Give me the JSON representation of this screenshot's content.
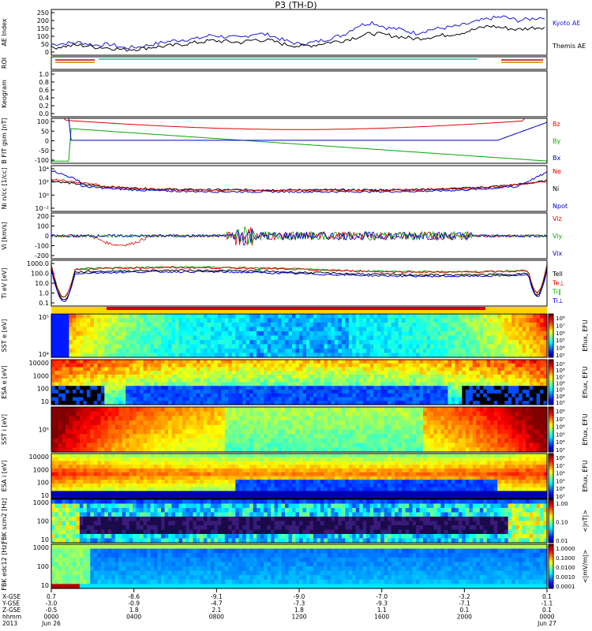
{
  "title": "P3 (TH-D)",
  "chart_data": {
    "type": "line",
    "panels": [
      {
        "name": "ae",
        "ylabel": "AE Index",
        "yticks": [
          "250",
          "200",
          "150",
          "100",
          "50",
          "0"
        ],
        "legend": [
          "Kyoto AE",
          "Themis AE"
        ],
        "series": [
          {
            "name": "Kyoto AE",
            "values": [
              60,
              65,
              70,
              55,
              60,
              40,
              45,
              60,
              75,
              85,
              90,
              110,
              100,
              95,
              120,
              110,
              80,
              60,
              70,
              90,
              110,
              160,
              180,
              150,
              140,
              120,
              140,
              150,
              160,
              180,
              200,
              210,
              190,
              200,
              210
            ]
          },
          {
            "name": "Themis AE",
            "values": [
              40,
              50,
              55,
              45,
              40,
              30,
              35,
              45,
              50,
              60,
              70,
              80,
              75,
              70,
              85,
              80,
              60,
              50,
              55,
              70,
              80,
              100,
              120,
              110,
              100,
              90,
              100,
              110,
              120,
              140,
              160,
              150,
              140,
              150,
              155
            ]
          }
        ]
      },
      {
        "name": "roi",
        "ylabel": "ROI"
      },
      {
        "name": "keogram",
        "ylabel": "Keogram",
        "yticks": [
          "1.0",
          "0.8",
          "0.6",
          "0.4",
          "0.2",
          "0.0"
        ]
      },
      {
        "name": "bfit",
        "ylabel": "B FIT gsm [nT]",
        "yticks": [
          "100",
          "50",
          "0",
          "-50",
          "-100"
        ],
        "legend": [
          "Bz",
          "By",
          "Bx"
        ]
      },
      {
        "name": "density",
        "ylabel": "Ni n/cc [1/cc]",
        "yticks": [
          "10⁴",
          "10²",
          "10⁰",
          "10⁻²"
        ],
        "legend": [
          "Ne",
          "Ni",
          "Npot"
        ]
      },
      {
        "name": "velocity",
        "ylabel": "Vi [km/s]",
        "yticks": [
          "200",
          "100",
          "0",
          "-100",
          "-200"
        ],
        "legend": [
          "Viz",
          "Viy",
          "Vix"
        ]
      },
      {
        "name": "temperature",
        "ylabel": "Ti eV [eV]",
        "yticks": [
          "1000.0",
          "100.0",
          "10.0",
          "1.0",
          "0.1"
        ],
        "legend": [
          "Tell",
          "Te⊥",
          "Ti∥",
          "Ti⊥"
        ]
      },
      {
        "name": "sst_e",
        "ylabel": "SST e [eV]",
        "yticks": [
          "10⁵",
          "10⁴"
        ],
        "cbar_label": "Eflux, EFU",
        "cbar_ticks": [
          "10⁸",
          "10⁷",
          "10⁶",
          "10⁵",
          "10⁴",
          "10³"
        ]
      },
      {
        "name": "esa_e",
        "ylabel": "ESA e [eV]",
        "yticks": [
          "10000",
          "1000",
          "100",
          "10"
        ],
        "cbar_label": "Eflux, EFU",
        "cbar_ticks": [
          "10⁹",
          "10⁸",
          "10⁷",
          "10⁶",
          "10⁵",
          "10⁴",
          "10³"
        ]
      },
      {
        "name": "sst_i",
        "ylabel": "SST i [eV]",
        "yticks": [
          "10⁵"
        ],
        "cbar_label": "Eflux, EFU",
        "cbar_ticks": [
          "10⁸",
          "10⁷",
          "10⁶",
          "10⁵",
          "10⁴",
          "10³"
        ]
      },
      {
        "name": "esa_i",
        "ylabel": "ESA i [eV]",
        "yticks": [
          "10000",
          "1000",
          "100",
          "10"
        ],
        "cbar_label": "Eflux, EFU",
        "cbar_ticks": [
          "10⁸",
          "10⁷",
          "10⁶",
          "10⁵",
          "10⁴",
          "10³"
        ]
      },
      {
        "name": "fbk_b",
        "ylabel": "FBK scm2 [Hz]",
        "yticks": [
          "1000",
          "100",
          "10"
        ],
        "cbar_label": "<|nT|>",
        "cbar_ticks": [
          "1.00",
          "0.10",
          "0.01"
        ]
      },
      {
        "name": "fbk_e",
        "ylabel": "FBK edc12 [Hz]",
        "yticks": [
          "1000",
          "100",
          "10"
        ],
        "cbar_label": "<|mV/m|>",
        "cbar_ticks": [
          "1.0000",
          "0.1000",
          "0.0100",
          "0.0010",
          "0.0001"
        ]
      }
    ],
    "xaxis": {
      "row_labels": [
        "X-GSE",
        "Y-GSE",
        "Z-GSE",
        "hhmm",
        "2013"
      ],
      "ticks": [
        {
          "x": "0.7",
          "y": "-3.0",
          "z": "-0.5",
          "t": "0000",
          "d": "Jun 26"
        },
        {
          "x": "-8.6",
          "y": "-0.9",
          "z": "1.8",
          "t": "0400",
          "d": ""
        },
        {
          "x": "-9.1",
          "y": "-4.7",
          "z": "2.1",
          "t": "0800",
          "d": ""
        },
        {
          "x": "-9.0",
          "y": "-7.3",
          "z": "1.8",
          "t": "1200",
          "d": ""
        },
        {
          "x": "-7.0",
          "y": "-9.3",
          "z": "1.1",
          "t": "1600",
          "d": ""
        },
        {
          "x": "-3.2",
          "y": "-7.1",
          "z": "0.1",
          "t": "2000",
          "d": ""
        },
        {
          "x": "0.1",
          "y": "-1.1",
          "z": "0.1",
          "t": "0000",
          "d": "Jun 27"
        }
      ]
    }
  }
}
